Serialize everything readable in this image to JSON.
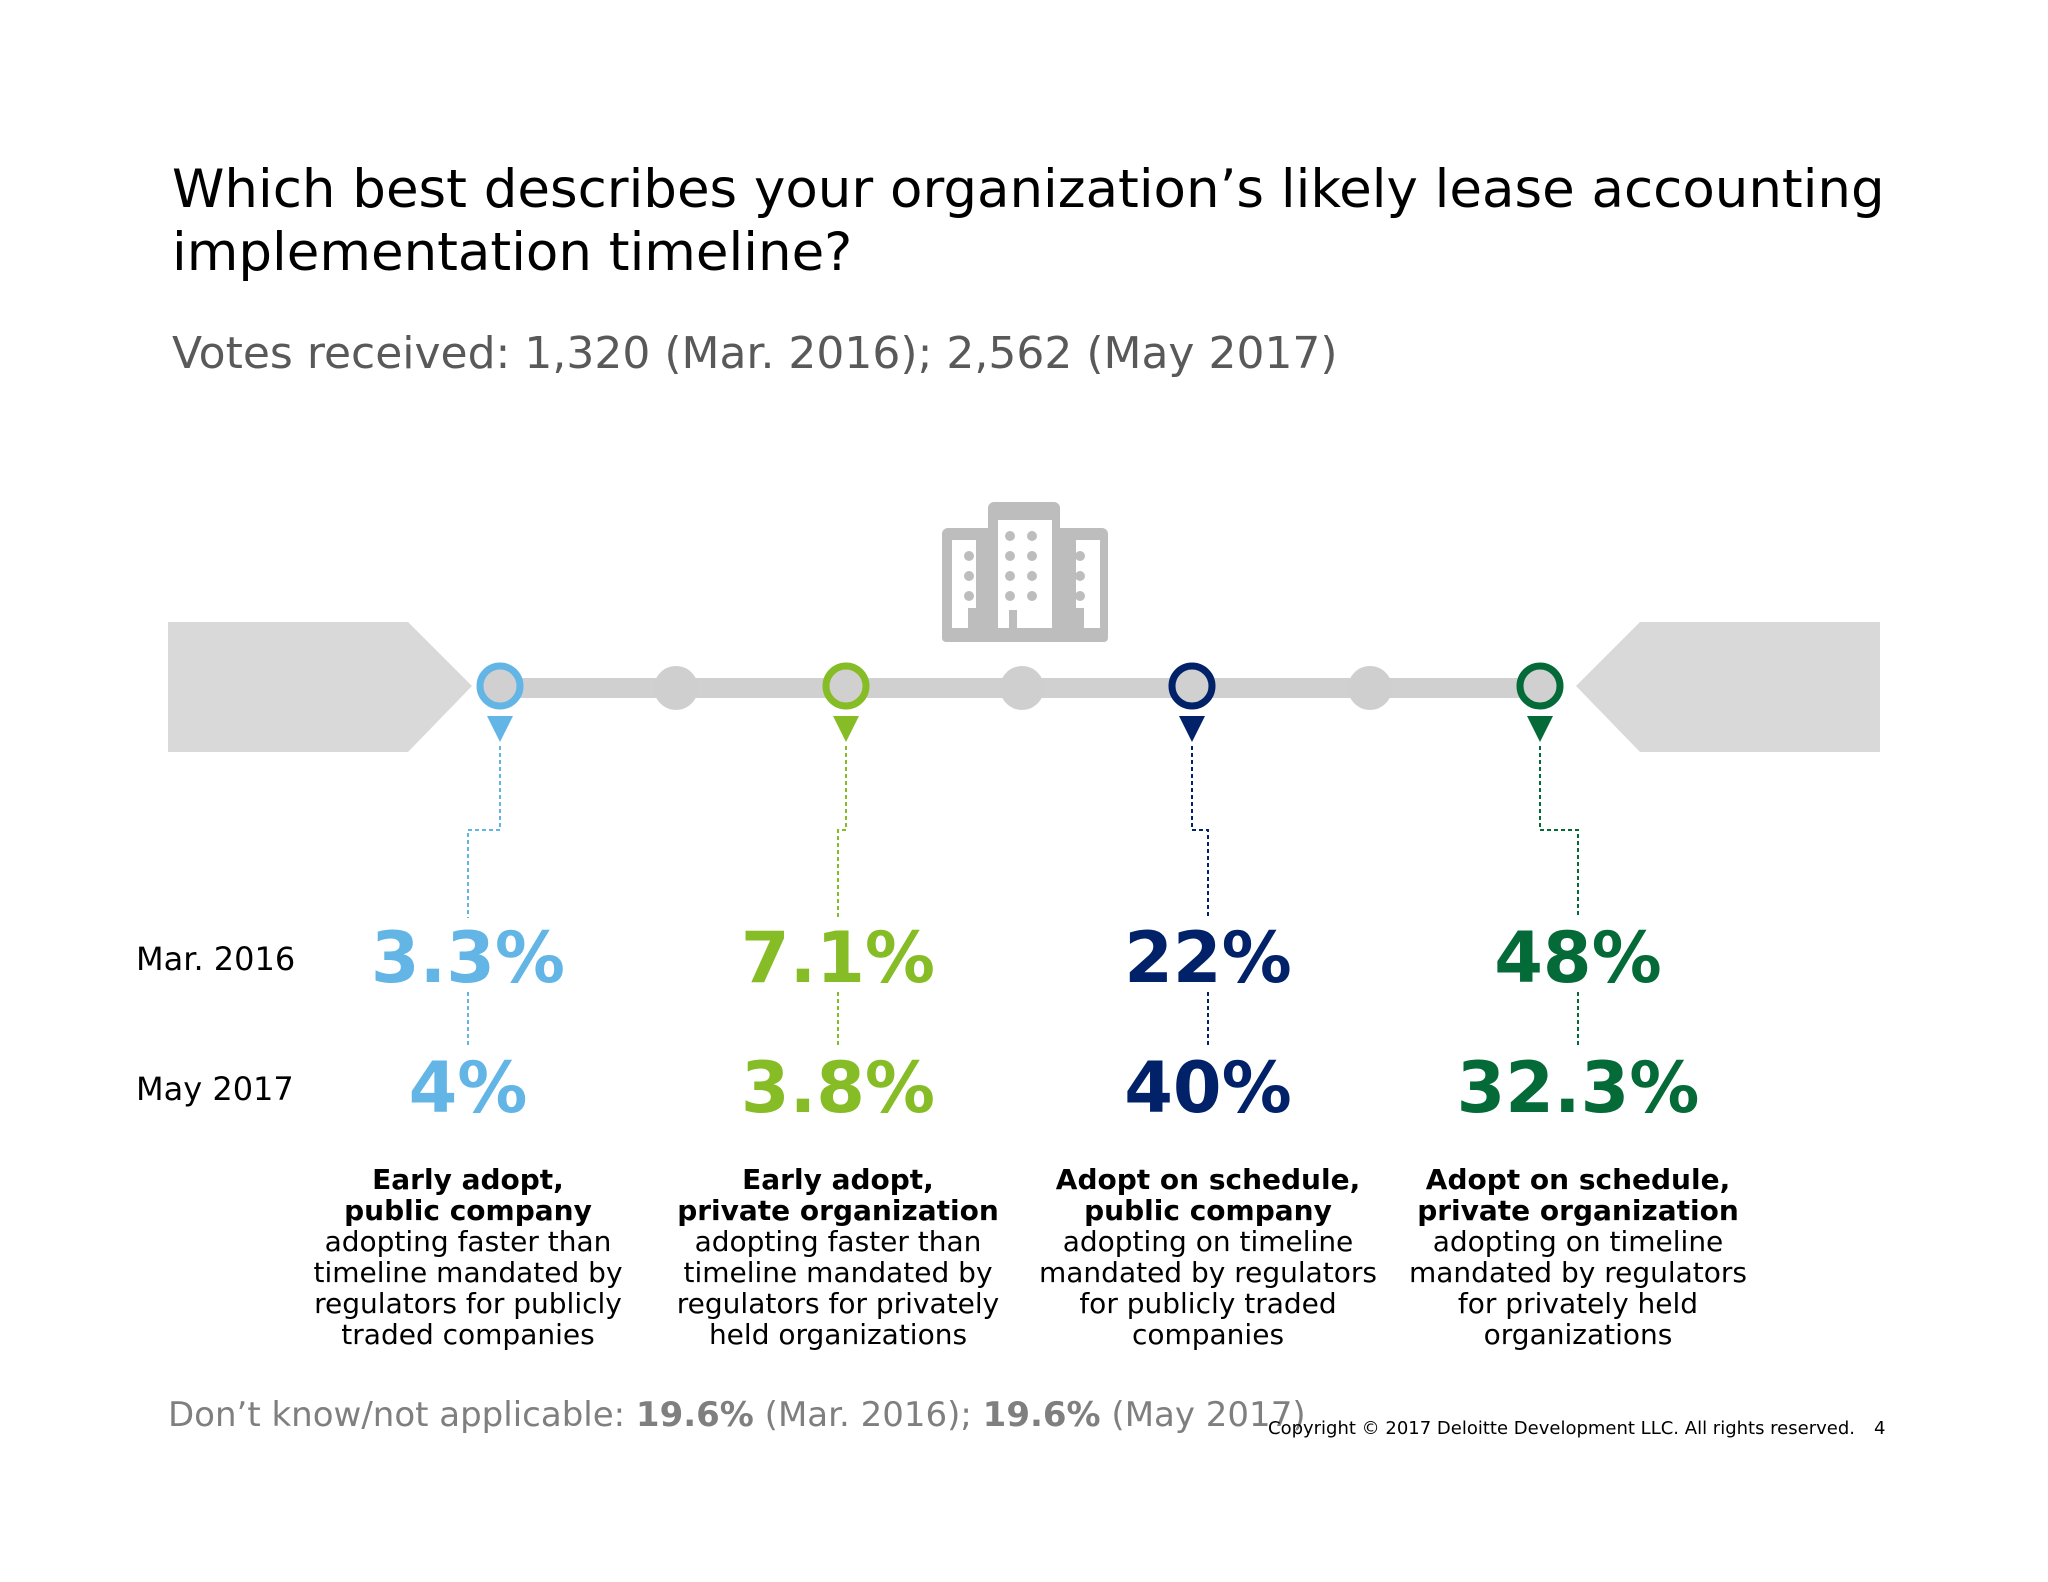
{
  "title": "Which best describes your organization’s likely lease accounting implementation timeline?",
  "subtitle": "Votes received: 1,320 (Mar. 2016); 2,562 (May 2017)",
  "icons": {
    "building": "building-icon"
  },
  "colors": {
    "light_blue": "#62b5e5",
    "light_green": "#86bc25",
    "navy": "#012169",
    "dark_green": "#046a38",
    "gray": "#d0d0d0",
    "icon_gray": "#bdbdbd"
  },
  "chart_data": {
    "type": "table",
    "title": "Which best describes your organization’s likely lease accounting implementation timeline?",
    "subtitle": "Votes received: 1,320 (Mar. 2016); 2,562 (May 2017)",
    "row_labels": [
      "Mar. 2016",
      "May 2017"
    ],
    "categories": [
      "Early adopt, public company",
      "Early adopt, private organization",
      "Adopt on schedule, public company",
      "Adopt on schedule, private organization"
    ],
    "series": [
      {
        "name": "Mar. 2016",
        "values": [
          3.3,
          7.1,
          22,
          48
        ]
      },
      {
        "name": "May 2017",
        "values": [
          4,
          3.8,
          40,
          32.3
        ]
      }
    ],
    "unit": "%"
  },
  "columns": [
    {
      "color": "#62b5e5",
      "mar2016": "3.3%",
      "may2017": "4%",
      "heading_line1": "Early adopt,",
      "heading_line2": "public company",
      "desc_lines": [
        "adopting faster than",
        "timeline mandated by",
        "regulators for publicly",
        "traded companies"
      ]
    },
    {
      "color": "#86bc25",
      "mar2016": "7.1%",
      "may2017": "3.8%",
      "heading_line1": "Early adopt,",
      "heading_line2": "private organization",
      "desc_lines": [
        "adopting faster than",
        "timeline mandated by",
        "regulators for privately",
        "held organizations"
      ]
    },
    {
      "color": "#012169",
      "mar2016": "22%",
      "may2017": "40%",
      "heading_line1": "Adopt on schedule,",
      "heading_line2": "public company",
      "desc_lines": [
        "adopting on timeline",
        "mandated by regulators",
        "for publicly traded",
        "companies"
      ]
    },
    {
      "color": "#046a38",
      "mar2016": "48%",
      "may2017": "32.3%",
      "heading_line1": "Adopt on schedule,",
      "heading_line2": "private organization",
      "desc_lines": [
        "adopting on timeline",
        "mandated by regulators",
        "for privately held",
        "organizations"
      ]
    }
  ],
  "footnote": {
    "prefix": "Don’t know/not applicable: ",
    "value1": "19.6%",
    "mid": " (Mar. 2016); ",
    "value2": "19.6%",
    "suffix": " (May 2017)"
  },
  "copyright": "Copyright © 2017 Deloitte Development LLC. All rights reserved.",
  "page_number": "4"
}
